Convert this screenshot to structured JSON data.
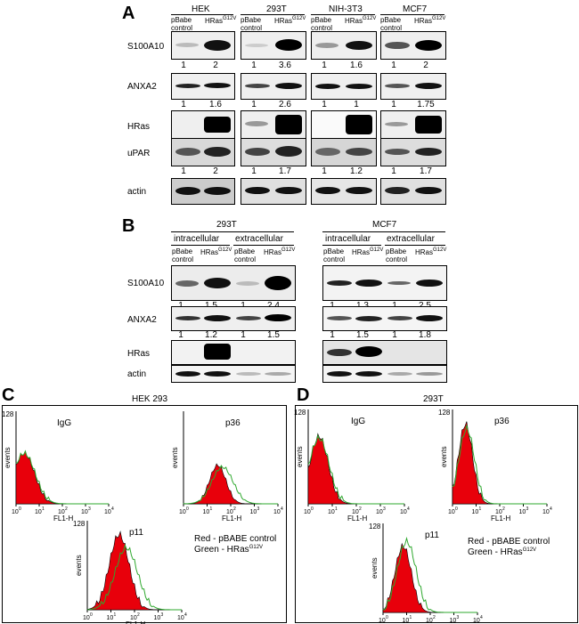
{
  "panelA": {
    "letter": "A",
    "cell_lines": [
      "HEK",
      "293T",
      "NIH-3T3",
      "MCF7"
    ],
    "lane1": "pBabe control",
    "lane2_base": "HRas",
    "lane2_sup": "G12V",
    "rows": [
      "S100A10",
      "ANXA2",
      "HRas",
      "uPAR",
      "actin"
    ],
    "s100a10_ratios": [
      [
        "1",
        "2"
      ],
      [
        "1",
        "3.6"
      ],
      [
        "1",
        "1.6"
      ],
      [
        "1",
        "2"
      ]
    ],
    "anxa2_ratios": [
      [
        "1",
        "1.6"
      ],
      [
        "1",
        "2.6"
      ],
      [
        "1",
        "1"
      ],
      [
        "1",
        "1.75"
      ]
    ],
    "upar_ratios": [
      [
        "1",
        "2"
      ],
      [
        "1",
        "1.7"
      ],
      [
        "1",
        "1.2"
      ],
      [
        "1",
        "1.7"
      ]
    ]
  },
  "panelB": {
    "letter": "B",
    "cell_lines": [
      "293T",
      "MCF7"
    ],
    "fractions": [
      "intracellular",
      "extracellular"
    ],
    "rows": [
      "S100A10",
      "ANXA2",
      "HRas",
      "actin"
    ],
    "s100a10_ratios": [
      [
        "1",
        "1.5",
        "1",
        "2.4"
      ],
      [
        "1",
        "1.3",
        "1",
        "2.5"
      ]
    ],
    "anxa2_ratios": [
      [
        "1",
        "1.2",
        "1",
        "1.5"
      ],
      [
        "1",
        "1.5",
        "1",
        "1.8"
      ]
    ]
  },
  "panelC": {
    "letter": "C",
    "title": "HEK 293",
    "plots": [
      "IgG",
      "p36",
      "p11"
    ],
    "legend_red": "Red - pBABE control",
    "legend_green_base": "Green - HRas",
    "legend_green_sup": "G12V"
  },
  "panelD": {
    "letter": "D",
    "title": "293T",
    "plots": [
      "IgG",
      "p36",
      "p11"
    ],
    "legend_red": "Red - pBABE control",
    "legend_green_base": "Green - HRas",
    "legend_green_sup": "G12V"
  },
  "axis": {
    "ymax": "128",
    "ylabel": "events",
    "xlabel": "FL1-H",
    "xticks": [
      "10",
      "10",
      "10",
      "10",
      "10"
    ],
    "xexp": [
      "0",
      "1",
      "2",
      "3",
      "4"
    ]
  },
  "colors": {
    "red": "#e8000b",
    "green": "#2ea82e"
  }
}
